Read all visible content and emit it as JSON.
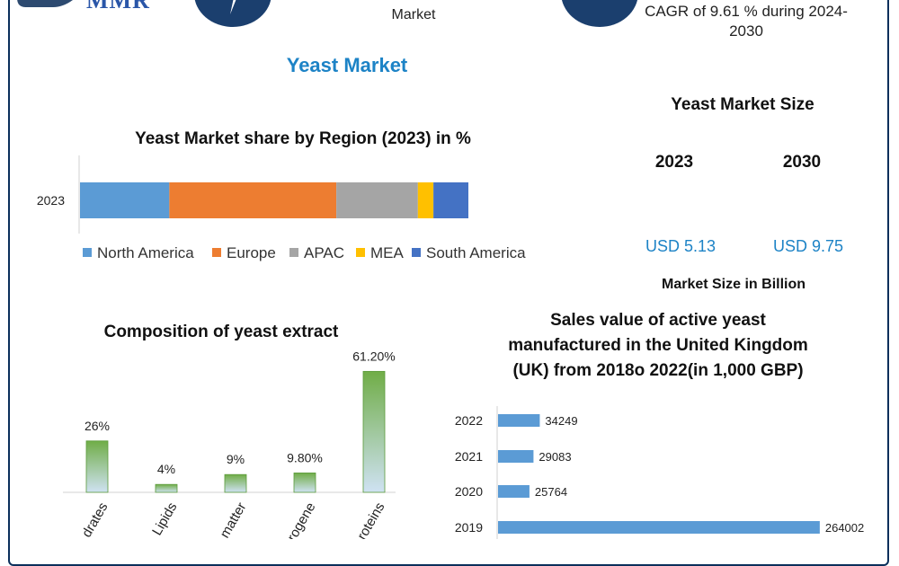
{
  "header": {
    "logo_text": "MMR",
    "mid_text": "Market",
    "cagr_line1": "CAGR of 9.61 % during 2024-",
    "cagr_line2": "2030"
  },
  "page_title": "Yeast Market",
  "market_size": {
    "heading": "Yeast Market Size",
    "year_a": "2023",
    "year_b": "2030",
    "value_a": "USD 5.13",
    "value_b": "USD 9.75",
    "footnote": "Market Size in Billion"
  },
  "chart_data": [
    {
      "type": "bar",
      "orientation": "horizontal-stacked",
      "title": "Yeast Market share by Region (2023) in %",
      "categories": [
        "2023"
      ],
      "series": [
        {
          "name": "North America",
          "values": [
            23
          ],
          "color": "#5b9bd5"
        },
        {
          "name": "Europe",
          "values": [
            43
          ],
          "color": "#ed7d31"
        },
        {
          "name": "APAC",
          "values": [
            21
          ],
          "color": "#a5a5a5"
        },
        {
          "name": "MEA",
          "values": [
            4
          ],
          "color": "#ffc000"
        },
        {
          "name": "South America",
          "values": [
            9
          ],
          "color": "#4472c4"
        }
      ],
      "xlim": [
        0,
        100
      ],
      "legend": "bottom"
    },
    {
      "type": "bar",
      "title": "Composition of yeast extract",
      "categories": [
        "Carbohydrates",
        "Lipids",
        "Ash matter",
        "Nitrogene",
        "Proteins"
      ],
      "visible_category_labels": [
        "drates",
        "Lipids",
        "matter",
        "rogene",
        "roteins"
      ],
      "values": [
        26,
        4,
        9,
        9.8,
        61.2
      ],
      "data_labels": [
        "26%",
        "4%",
        "9%",
        "9.80%",
        "61.20%"
      ],
      "ylim": [
        0,
        65
      ],
      "color_top": "#70ad47",
      "color_bottom": "#cfe2f3"
    },
    {
      "type": "bar",
      "orientation": "horizontal",
      "title_lines": [
        "Sales value of active yeast",
        "manufactured in the United Kingdom",
        "(UK) from 2018o 2022(in 1,000 GBP)"
      ],
      "categories": [
        "2022",
        "2021",
        "2020",
        "2019"
      ],
      "values": [
        34249,
        29083,
        25764,
        264002
      ],
      "data_labels": [
        "34249",
        "29083",
        "25764",
        "264002"
      ],
      "xlim": [
        0,
        270000
      ],
      "color": "#5b9bd5"
    }
  ]
}
